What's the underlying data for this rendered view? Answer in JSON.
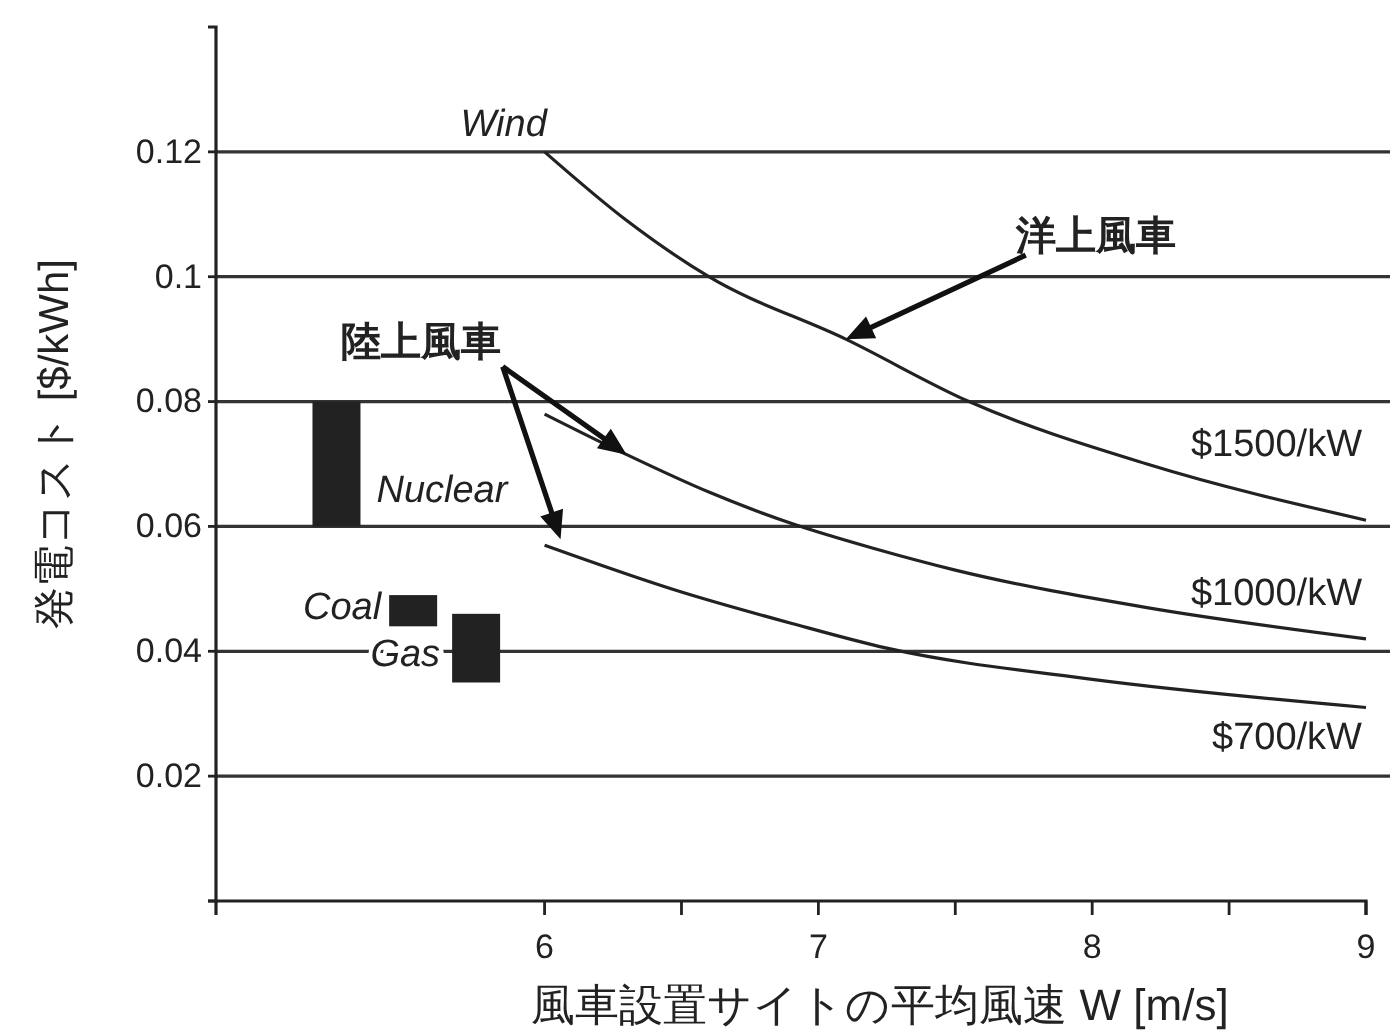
{
  "chart_data": {
    "type": "line",
    "xlabel": "風車設置サイトの平均風速 W [m/s]",
    "ylabel": "発電コスト [$/kWh]",
    "xlim": [
      4.8,
      9
    ],
    "xticks": [
      6,
      {
        "value": 6.5,
        "label": null
      },
      7,
      {
        "value": 7.5,
        "label": null
      },
      8,
      {
        "value": 8.5,
        "label": null
      },
      9
    ],
    "ylim": [
      0,
      0.14
    ],
    "yticks": [
      {
        "value": 0,
        "label": null
      },
      0.02,
      0.04,
      0.06,
      0.08,
      0.1,
      0.12
    ],
    "grid": "y",
    "legend": false,
    "marker": "none",
    "line_style": "solid",
    "series": [
      {
        "name": "$1500/kW",
        "color": "#222222",
        "x": [
          6,
          6.3,
          6.6,
          7.1,
          7.55,
          8.2,
          9
        ],
        "values": [
          0.12,
          0.109,
          0.1,
          0.09,
          0.08,
          0.07,
          0.061
        ]
      },
      {
        "name": "$1000/kW",
        "color": "#222222",
        "x": [
          6,
          6.3,
          6.6,
          6.9,
          7.2,
          7.5,
          8.2,
          9
        ],
        "values": [
          0.078,
          0.0715,
          0.0655,
          0.0605,
          0.0565,
          0.053,
          0.047,
          0.042
        ]
      },
      {
        "name": "$700/kW",
        "color": "#222222",
        "x": [
          6,
          6.5,
          6.9,
          7.25,
          8,
          9
        ],
        "values": [
          0.057,
          0.0495,
          0.0445,
          0.0405,
          0.0355,
          0.031
        ]
      },
      {
        "type": "bar",
        "name": "Nuclear",
        "color": "#222222",
        "x": [
          5.24
        ],
        "base": [
          0.06
        ],
        "values": [
          0.02
        ]
      },
      {
        "type": "bar",
        "name": "Coal",
        "color": "#222222",
        "x": [
          5.52
        ],
        "base": [
          0.044
        ],
        "values": [
          0.005
        ]
      },
      {
        "type": "bar",
        "name": "Gas",
        "color": "#222222",
        "x": [
          5.75
        ],
        "base": [
          0.035
        ],
        "values": [
          0.011
        ]
      }
    ],
    "annotations": [
      {
        "text": "Wind",
        "x": 6,
        "y": 0.12
      },
      "洋上風車",
      "陸上風車"
    ]
  }
}
